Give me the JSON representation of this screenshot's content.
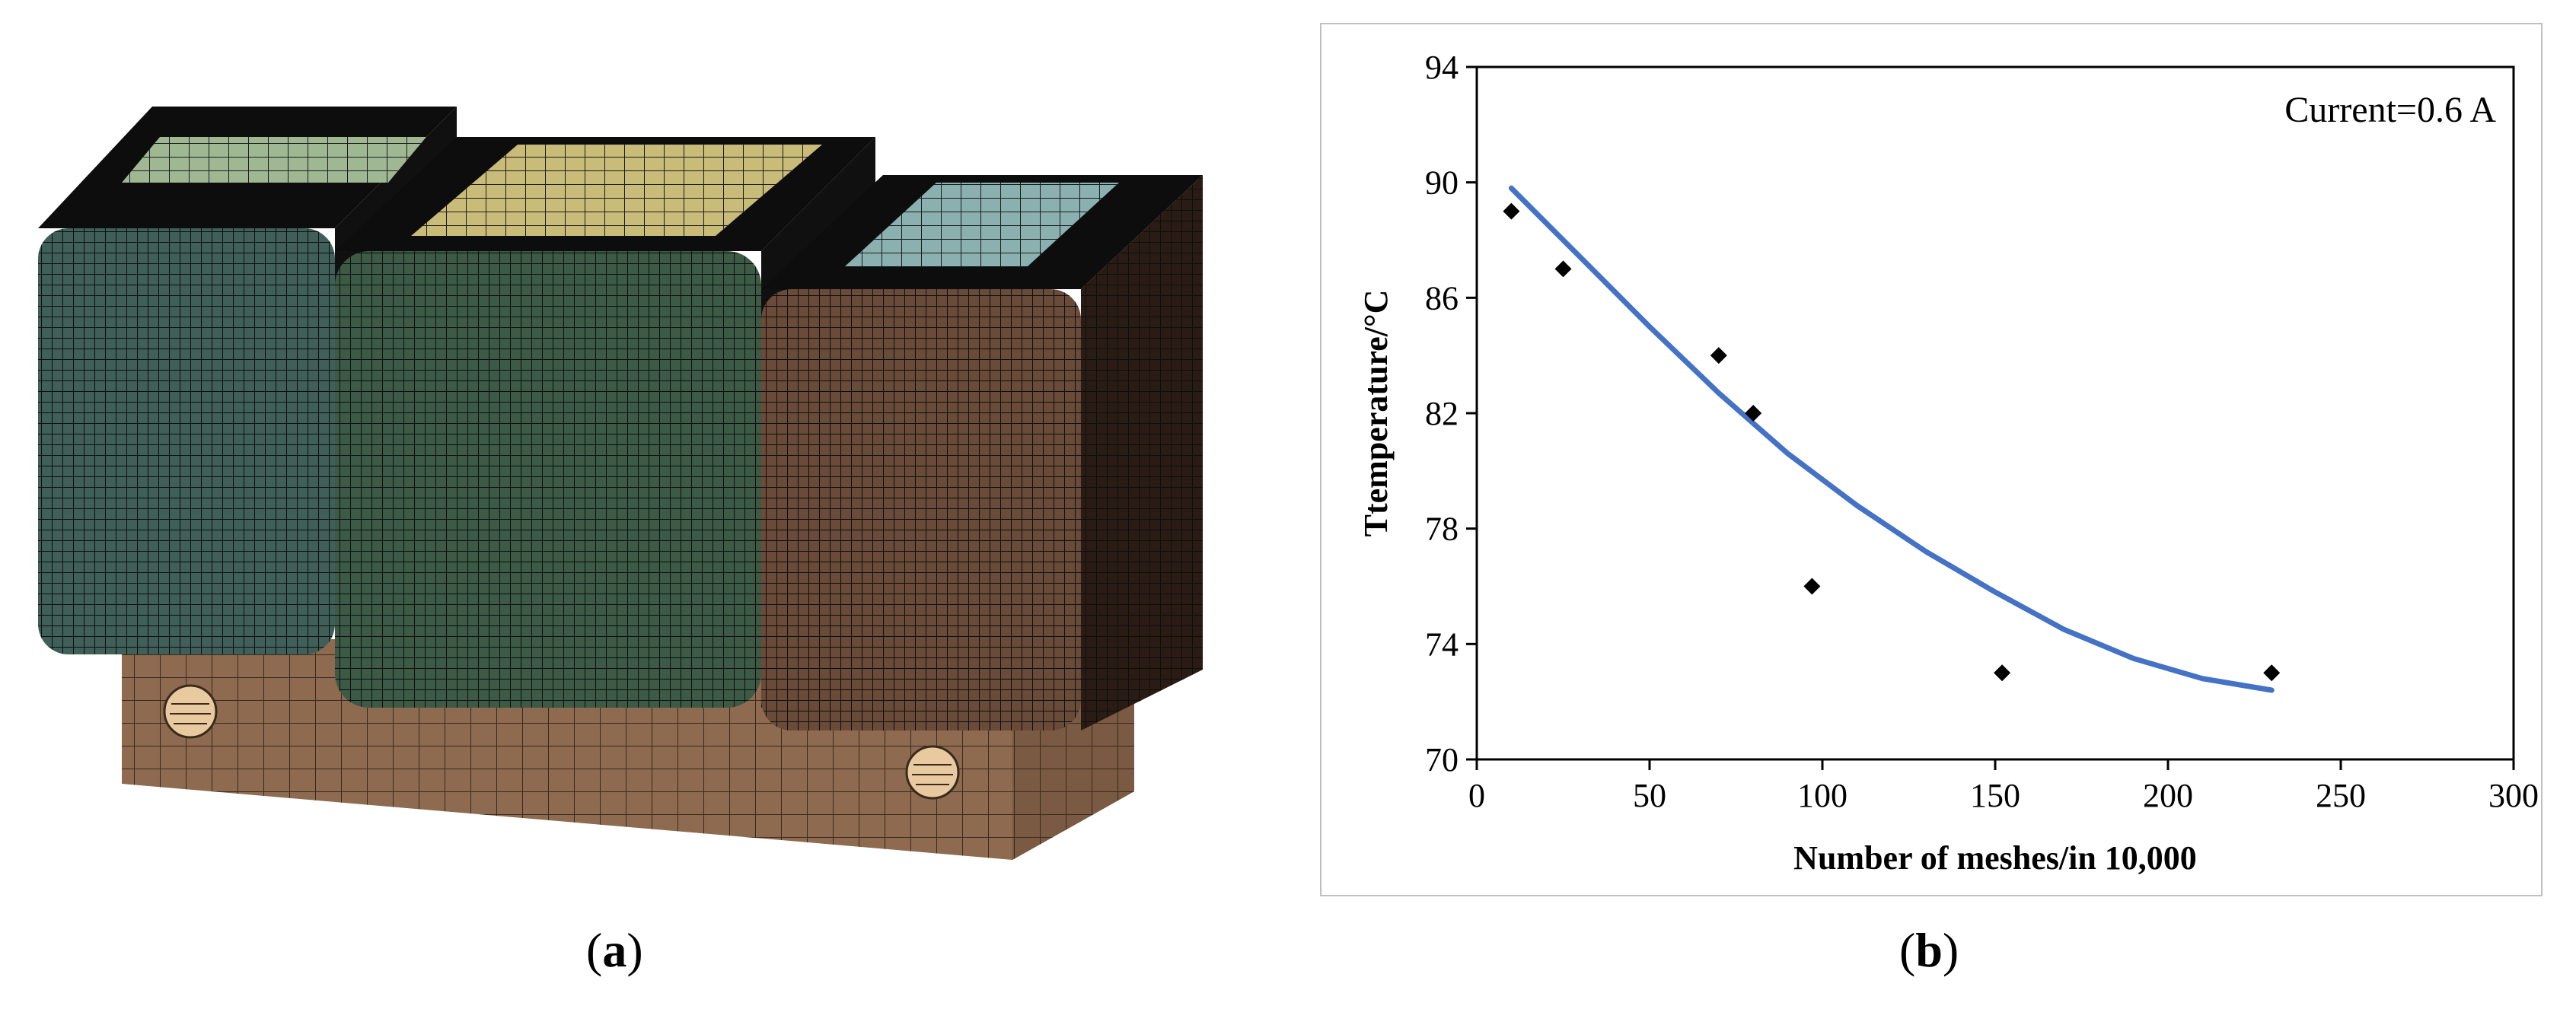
{
  "captions": {
    "a": {
      "open": "(",
      "letter": "a",
      "close": ")"
    },
    "b": {
      "open": "(",
      "letter": "b",
      "close": ")"
    }
  },
  "mesh_panel": {
    "colors": {
      "core_face": "#8d6a50",
      "core_line": "#3a2a1c",
      "left_winding": "#3f5f58",
      "middle_winding": "#3c5a46",
      "right_winding": "#6a4a38",
      "left_top": "#9fb893",
      "middle_top": "#c9bb78",
      "right_top": "#8ab0b0",
      "bolt": "#e8c9a0"
    },
    "icons": [
      "transformer-mesh-model",
      "bolt-hole-icon"
    ]
  },
  "chart_data": {
    "type": "scatter",
    "xlabel": "Number of meshes/in 10,000",
    "ylabel": "Ttemperature/°C",
    "annotation": "Current=0.6 A",
    "xlim": [
      0,
      300
    ],
    "ylim": [
      70,
      94
    ],
    "x_ticks": [
      "0",
      "50",
      "100",
      "150",
      "200",
      "250",
      "300"
    ],
    "y_ticks": [
      "70",
      "74",
      "78",
      "82",
      "86",
      "90",
      "94"
    ],
    "x_tick_values": [
      0,
      50,
      100,
      150,
      200,
      250,
      300
    ],
    "y_tick_values": [
      70,
      74,
      78,
      82,
      86,
      90,
      94
    ],
    "grid": false,
    "series": [
      {
        "kind": "points",
        "marker": "diamond",
        "color": "#000000",
        "x": [
          10,
          25,
          70,
          80,
          97,
          152,
          230
        ],
        "y": [
          89,
          87,
          84,
          82,
          76,
          73,
          73
        ]
      },
      {
        "kind": "trendline",
        "color": "#4472c4",
        "x": [
          10,
          30,
          50,
          70,
          90,
          110,
          130,
          150,
          170,
          190,
          210,
          230
        ],
        "y": [
          89.8,
          87.4,
          85.0,
          82.7,
          80.6,
          78.8,
          77.2,
          75.8,
          74.5,
          73.5,
          72.8,
          72.4
        ]
      }
    ]
  }
}
